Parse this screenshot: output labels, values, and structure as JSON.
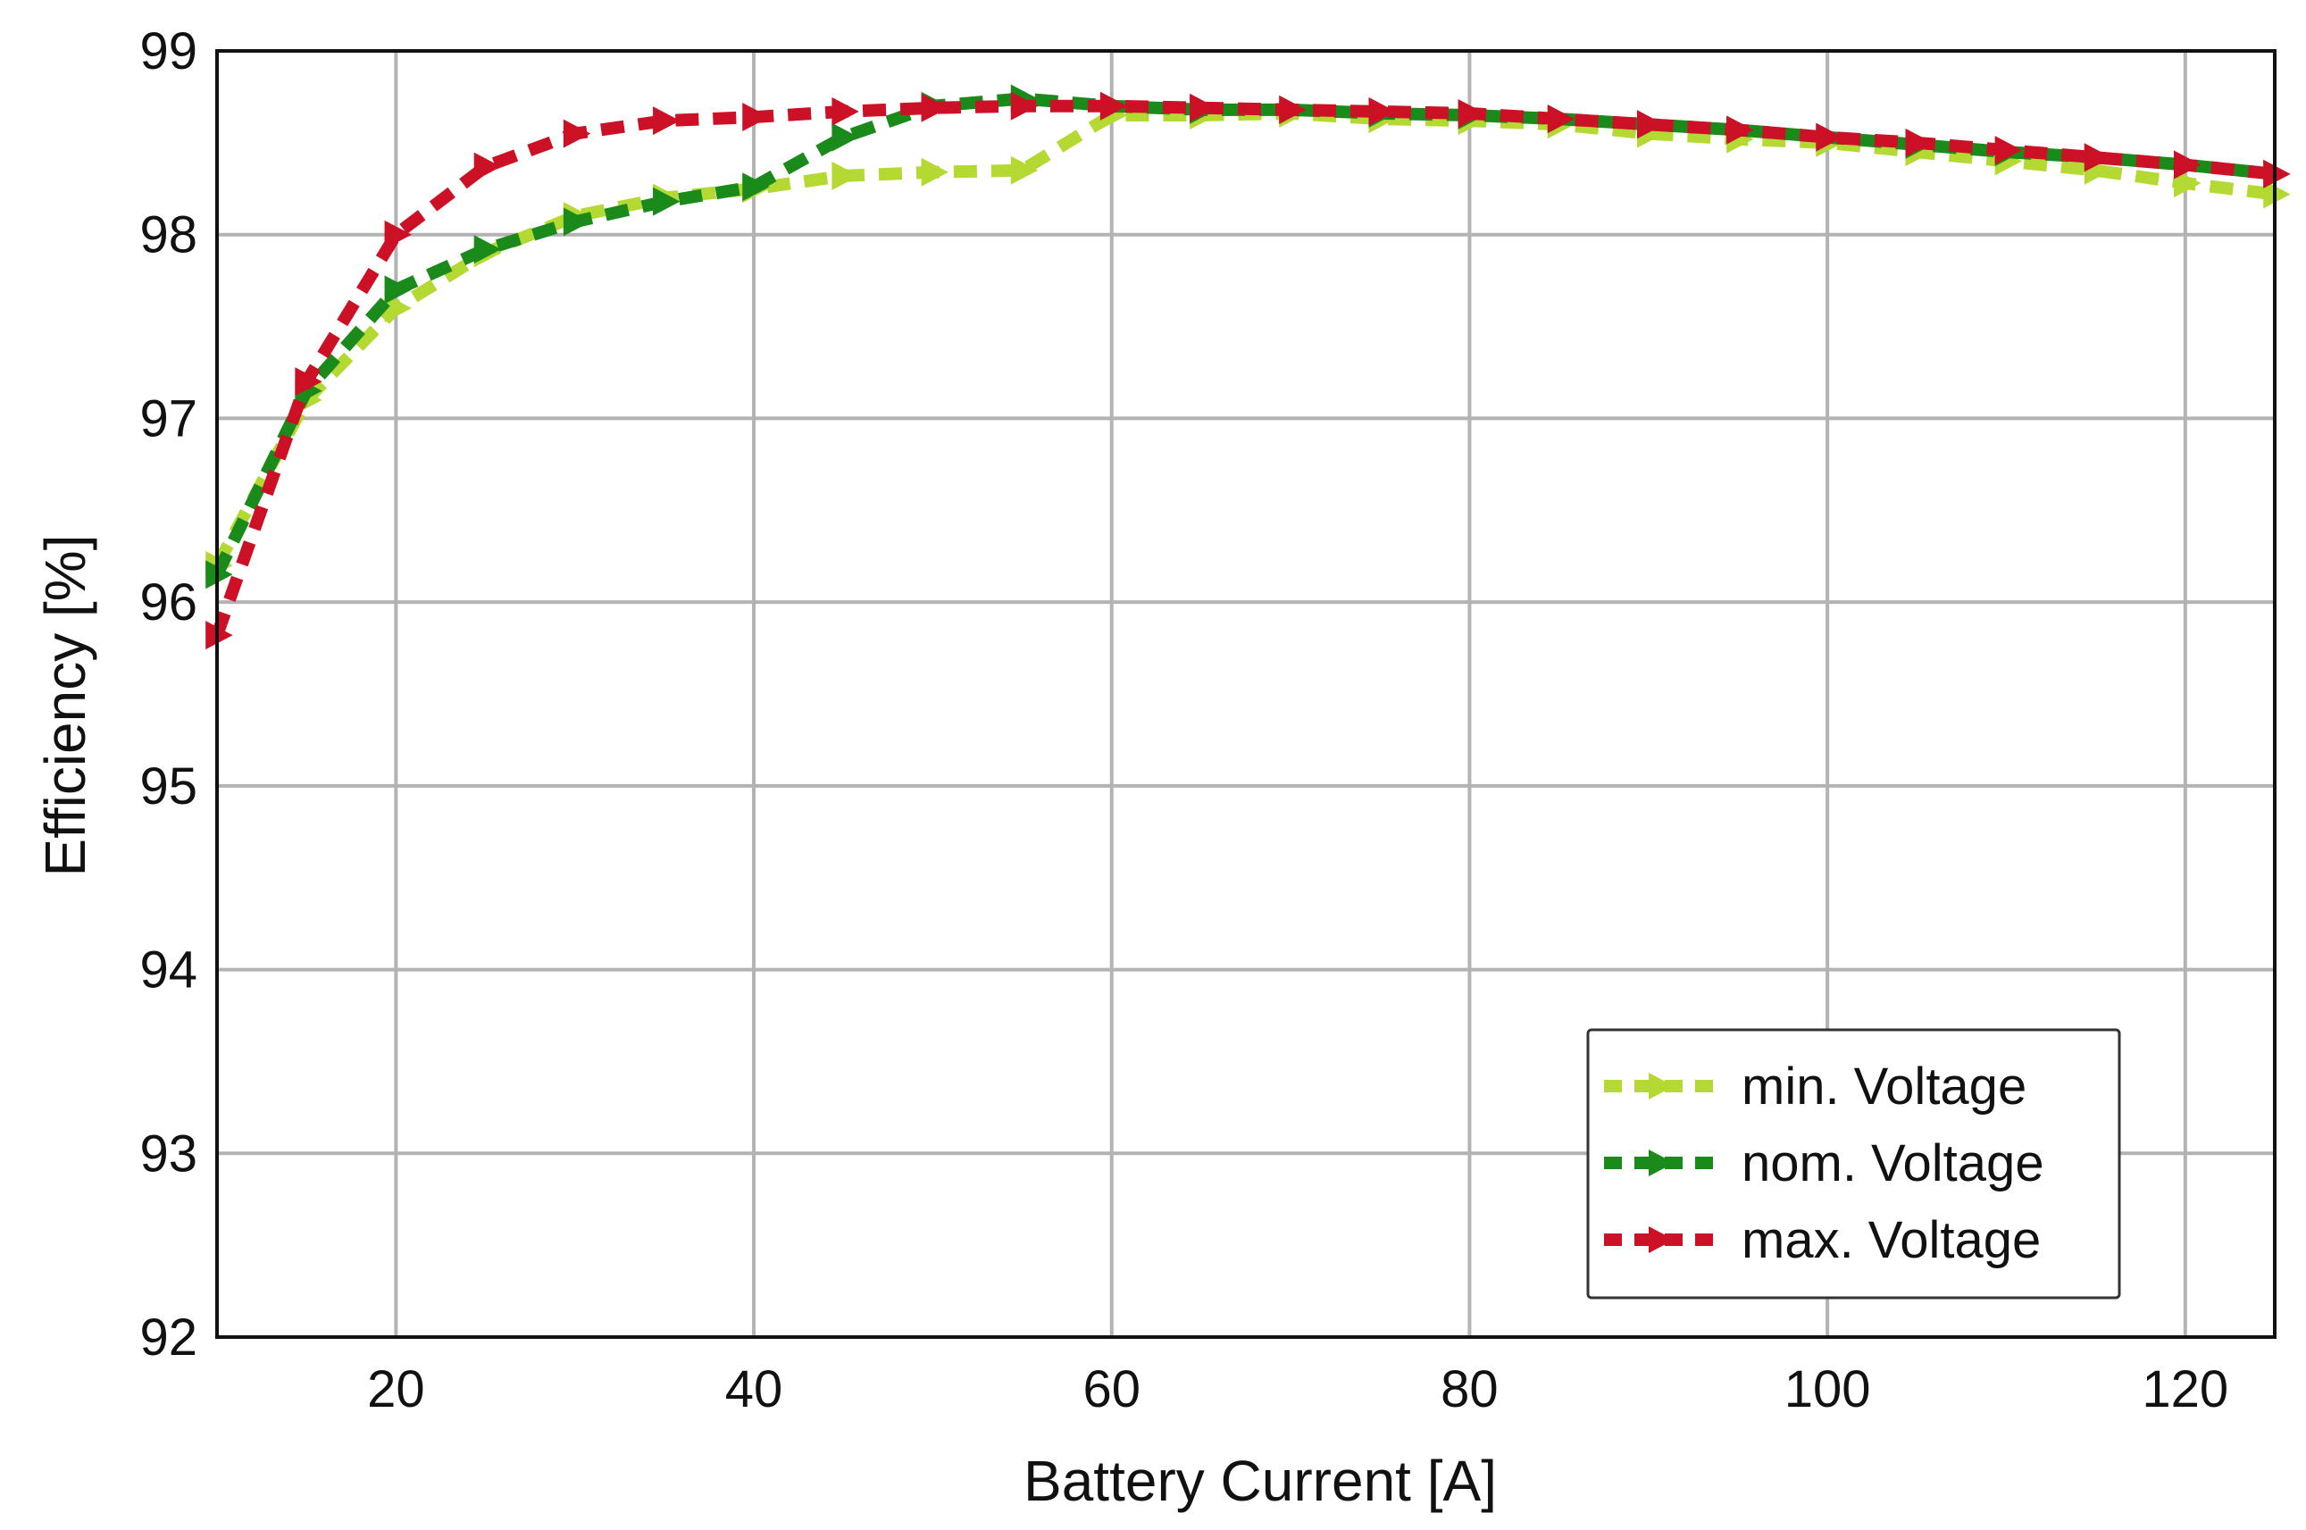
{
  "chart_data": {
    "type": "line",
    "title": "",
    "xlabel": "Battery Current [A]",
    "ylabel": "Efficiency [%]",
    "xlim": [
      10,
      125
    ],
    "ylim": [
      92,
      99
    ],
    "xticks": [
      20,
      40,
      60,
      80,
      100,
      120
    ],
    "yticks": [
      92,
      93,
      94,
      95,
      96,
      97,
      98,
      99
    ],
    "grid": true,
    "legend_position": "bottom-right",
    "line_style": "dashed",
    "marker": "triangle-right",
    "series": [
      {
        "name": "min. Voltage",
        "color": "#b5d933",
        "x": [
          10,
          15,
          20,
          25,
          30,
          35,
          40,
          45,
          50,
          55,
          60,
          65,
          70,
          75,
          80,
          85,
          90,
          95,
          100,
          105,
          110,
          115,
          120,
          125
        ],
        "y": [
          96.2,
          97.1,
          97.6,
          97.9,
          98.1,
          98.2,
          98.25,
          98.32,
          98.34,
          98.35,
          98.65,
          98.65,
          98.66,
          98.63,
          98.62,
          98.6,
          98.55,
          98.52,
          98.5,
          98.45,
          98.4,
          98.35,
          98.28,
          98.22
        ]
      },
      {
        "name": "nom. Voltage",
        "color": "#1a8a1a",
        "x": [
          10,
          15,
          20,
          25,
          30,
          35,
          40,
          45,
          50,
          55,
          60,
          65,
          70,
          75,
          80,
          85,
          90,
          95,
          100,
          105,
          110,
          115,
          120,
          125
        ],
        "y": [
          96.15,
          97.15,
          97.7,
          97.92,
          98.07,
          98.18,
          98.26,
          98.53,
          98.7,
          98.74,
          98.7,
          98.68,
          98.68,
          98.66,
          98.65,
          98.63,
          98.6,
          98.57,
          98.53,
          98.49,
          98.45,
          98.42,
          98.38,
          98.33
        ]
      },
      {
        "name": "max. Voltage",
        "color": "#cc1126",
        "x": [
          10,
          15,
          20,
          25,
          30,
          35,
          40,
          45,
          50,
          55,
          60,
          65,
          70,
          75,
          80,
          85,
          90,
          95,
          100,
          105,
          110,
          115,
          120,
          125
        ],
        "y": [
          95.82,
          97.2,
          98.0,
          98.37,
          98.55,
          98.62,
          98.64,
          98.67,
          98.69,
          98.7,
          98.7,
          98.69,
          98.68,
          98.67,
          98.66,
          98.63,
          98.6,
          98.57,
          98.53,
          98.5,
          98.46,
          98.42,
          98.38,
          98.33
        ]
      }
    ]
  }
}
